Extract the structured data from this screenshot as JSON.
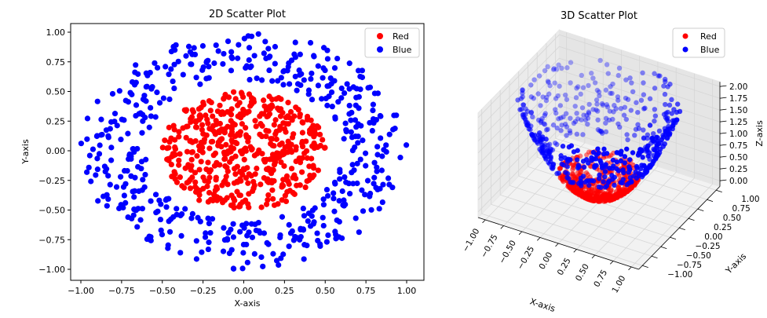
{
  "chart_data": [
    {
      "type": "scatter",
      "title": "2D Scatter Plot",
      "xlabel": "X-axis",
      "ylabel": "Y-axis",
      "xlim": [
        -1.1,
        1.1
      ],
      "ylim": [
        -1.1,
        1.1
      ],
      "xticks": [
        "-1.00",
        "-0.75",
        "-0.50",
        "-0.25",
        "0.00",
        "0.25",
        "0.50",
        "0.75",
        "1.00"
      ],
      "yticks": [
        "-1.00",
        "-0.75",
        "-0.50",
        "-0.25",
        "0.00",
        "0.25",
        "0.50",
        "0.75",
        "1.00"
      ],
      "grid": false,
      "legend": "top-right",
      "series": [
        {
          "name": "Red",
          "color": "#ff0000",
          "distribution": "disk",
          "radius_range": [
            0,
            0.5
          ],
          "count": 500
        },
        {
          "name": "Blue",
          "color": "#0000ff",
          "distribution": "ring",
          "radius_range": [
            0.6,
            1.0
          ],
          "count": 500
        }
      ]
    },
    {
      "type": "scatter3d",
      "title": "3D Scatter Plot",
      "xlabel": "X-axis",
      "ylabel": "Y-axis",
      "zlabel": "Z-axis",
      "xlim": [
        -1,
        1
      ],
      "ylim": [
        -1,
        1
      ],
      "zlim": [
        0,
        2
      ],
      "xticks": [
        "-1.00",
        "-0.75",
        "-0.50",
        "-0.25",
        "0.00",
        "0.25",
        "0.50",
        "0.75",
        "1.00"
      ],
      "yticks": [
        "-1.00",
        "-0.75",
        "-0.50",
        "-0.25",
        "0.00",
        "0.25",
        "0.50",
        "0.75",
        "1.00"
      ],
      "zticks": [
        "0.00",
        "0.25",
        "0.50",
        "0.75",
        "1.00",
        "1.25",
        "1.50",
        "1.75",
        "2.00"
      ],
      "surface": "z = 2(x^2 + y^2)",
      "legend": "top-right",
      "series": [
        {
          "name": "Red",
          "color": "#ff0000"
        },
        {
          "name": "Blue",
          "color": "#0000ff"
        }
      ]
    }
  ]
}
